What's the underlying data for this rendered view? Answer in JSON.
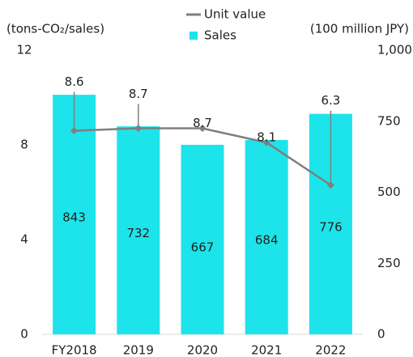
{
  "chart_data": {
    "type": "bar_line",
    "y_axis_label": "(tons-CO₂/sales)",
    "y2_axis_label": "(100 million JPY)",
    "categories": [
      "FY2018",
      "2019",
      "2020",
      "2021",
      "2022"
    ],
    "series": [
      {
        "name": "Sales",
        "type": "bar",
        "axis": "y2",
        "color": "#1de4ea",
        "values": [
          843,
          732,
          667,
          684,
          776
        ]
      },
      {
        "name": "Unit value",
        "type": "line",
        "axis": "y",
        "color": "#7f7f7f",
        "values": [
          8.6,
          8.7,
          8.7,
          8.1,
          6.3
        ]
      }
    ],
    "ylim": [
      0,
      12
    ],
    "yticks": [
      0,
      4,
      8,
      12
    ],
    "y2lim": [
      0,
      1000
    ],
    "y2ticks": [
      0,
      250,
      500,
      750,
      {
        "value": 1000,
        "label": "1,000"
      }
    ],
    "grid": false
  }
}
